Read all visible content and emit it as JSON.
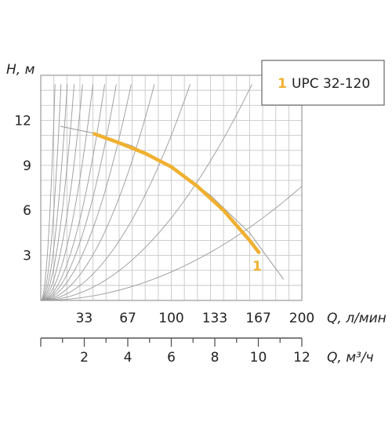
{
  "chart_data": {
    "type": "line",
    "xlabel": "Q, л/мин",
    "xlabel_secondary": "Q, м³/ч",
    "ylabel": "H, м",
    "x_ticks": [
      "33",
      "67",
      "100",
      "133",
      "167",
      "200"
    ],
    "x_tick_values": [
      33.3,
      66.7,
      100,
      133.3,
      166.7,
      200
    ],
    "x2_ticks": [
      "2",
      "4",
      "6",
      "8",
      "10",
      "12"
    ],
    "x2_tick_values": [
      2,
      4,
      6,
      8,
      10,
      12
    ],
    "y_ticks": [
      "3",
      "6",
      "9",
      "12"
    ],
    "y_tick_values": [
      3,
      6,
      9,
      12
    ],
    "xlim": [
      0,
      200
    ],
    "ylim": [
      0,
      15
    ],
    "grid": true,
    "legend_position": "top-right",
    "series": [
      {
        "name": "UPC 32-120",
        "label": "1",
        "color": "#f0b030",
        "x": [
          41,
          60,
          80,
          100,
          120,
          140,
          160,
          167
        ],
        "y": [
          11.1,
          10.5,
          9.8,
          8.9,
          7.6,
          6.0,
          4.0,
          3.2
        ]
      }
    ],
    "system_curves_k": [
      0.12,
      0.06,
      0.035,
      0.022,
      0.014,
      0.009,
      0.006,
      0.0043,
      0.003,
      0.0019,
      0.0011,
      0.00055,
      0.00019
    ],
    "family_curve": {
      "x": [
        15,
        40,
        70,
        100,
        130,
        160,
        186
      ],
      "y": [
        11.6,
        11.15,
        10.3,
        8.95,
        7.0,
        4.5,
        1.4
      ]
    }
  }
}
